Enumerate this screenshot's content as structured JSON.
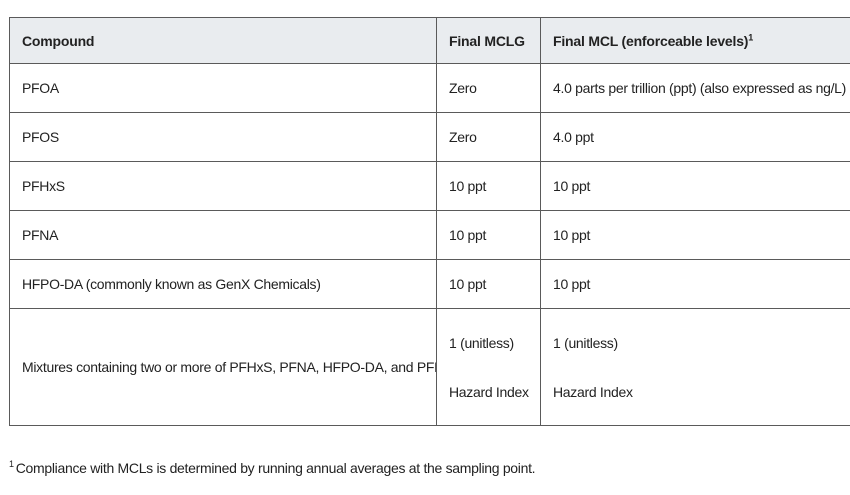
{
  "table": {
    "headers": {
      "compound": "Compound",
      "mclg": "Final MCLG",
      "mcl": "Final MCL (enforceable levels)",
      "mcl_footnote_marker": "1"
    },
    "rows": [
      {
        "compound": "PFOA",
        "mclg": "Zero",
        "mcl": "4.0 parts per trillion (ppt) (also expressed as ng/L)"
      },
      {
        "compound": "PFOS",
        "mclg": "Zero",
        "mcl": "4.0 ppt"
      },
      {
        "compound": "PFHxS",
        "mclg": "10 ppt",
        "mcl": "10 ppt"
      },
      {
        "compound": "PFNA",
        "mclg": "10 ppt",
        "mcl": "10 ppt"
      },
      {
        "compound": "HFPO-DA (commonly known as GenX Chemicals)",
        "mclg": "10 ppt",
        "mcl": "10 ppt"
      }
    ],
    "mixture_row": {
      "compound": "Mixtures containing two or more of PFHxS, PFNA, HFPO-DA, and PFBS",
      "mclg_lines": [
        "1 (unitless)",
        "Hazard Index"
      ],
      "mcl_lines": [
        "1 (unitless)",
        "Hazard Index"
      ]
    }
  },
  "footnote": {
    "marker": "1",
    "text": "Compliance with MCLs is determined by running annual averages at the sampling point."
  }
}
